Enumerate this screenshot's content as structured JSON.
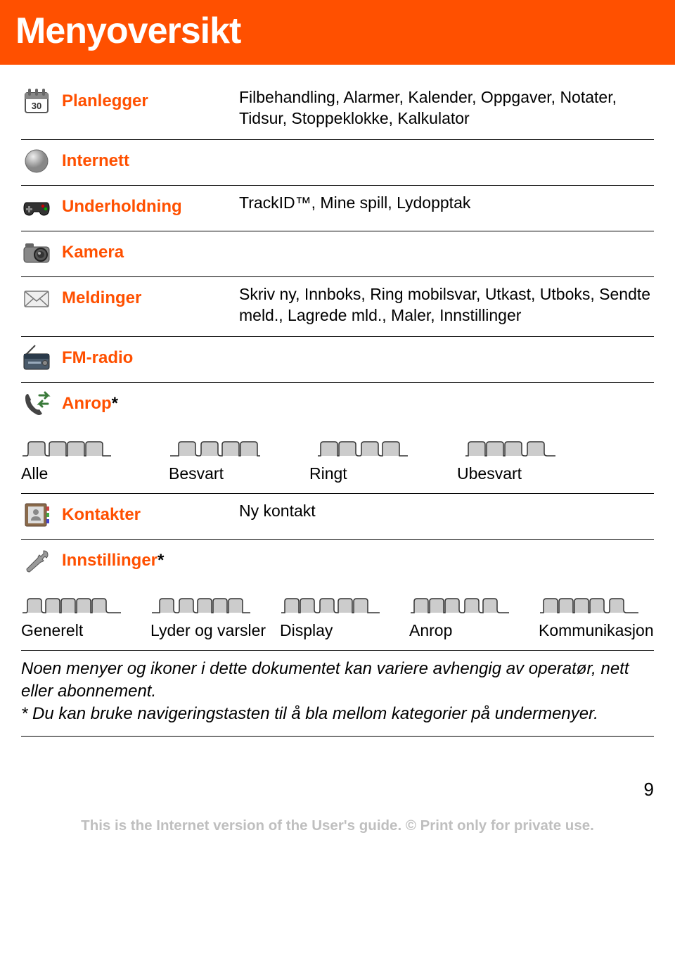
{
  "colors": {
    "brand": "#ff5000",
    "header_bg": "#ff5000",
    "header_text": "#ffffff",
    "label": "#ff5000",
    "copyright": "#bfbfbf",
    "tab_fill": "#cccccc",
    "tab_stroke": "#333333"
  },
  "typography": {
    "header_fontsize": 52,
    "label_fontsize": 24,
    "desc_fontsize": 23,
    "footnote_fontsize": 24,
    "pagenum_fontsize": 26,
    "copyright_fontsize": 20.5
  },
  "header": {
    "title": "Menyoversikt"
  },
  "menu": [
    {
      "key": "planlegger",
      "icon": "calendar-icon",
      "label": "Planlegger",
      "desc": "Filbehandling, Alarmer, Kalender, Oppgaver, Notater, Tidsur, Stoppeklokke, Kalkulator"
    },
    {
      "key": "internett",
      "icon": "globe-icon",
      "label": "Internett",
      "desc": ""
    },
    {
      "key": "underholdning",
      "icon": "gamepad-icon",
      "label": "Underholdning",
      "desc": "TrackID™, Mine spill, Lydopptak"
    },
    {
      "key": "kamera",
      "icon": "camera-icon",
      "label": "Kamera",
      "desc": ""
    },
    {
      "key": "meldinger",
      "icon": "envelope-icon",
      "label": "Meldinger",
      "desc": "Skriv ny, Innboks, Ring mobilsvar, Utkast, Utboks, Sendte meld., Lagrede mld., Maler, Innstillinger"
    },
    {
      "key": "fmradio",
      "icon": "radio-icon",
      "label": "FM-radio",
      "desc": ""
    },
    {
      "key": "anrop",
      "icon": "phone-icon",
      "label": "Anrop",
      "star": true
    }
  ],
  "call_tabs": {
    "count": 4,
    "labels": [
      "Alle",
      "Besvart",
      "Ringt",
      "Ubesvart"
    ]
  },
  "kontakter": {
    "icon": "contacts-icon",
    "label": "Kontakter",
    "desc": "Ny kontakt"
  },
  "innstillinger": {
    "icon": "wrench-icon",
    "label": "Innstillinger",
    "star": true
  },
  "settings_tabs": {
    "count": 5,
    "labels": [
      "Generelt",
      "Lyder og varsler",
      "Display",
      "Anrop",
      "Kommunikasjon"
    ]
  },
  "footnote": "Noen menyer og ikoner i dette dokumentet kan variere avhengig av operatør, nett eller abonnement.\n* Du kan bruke navigeringstasten til å bla mellom kategorier på undermenyer.",
  "page_number": "9",
  "copyright": "This is the Internet version of the User's guide. © Print only for private use."
}
